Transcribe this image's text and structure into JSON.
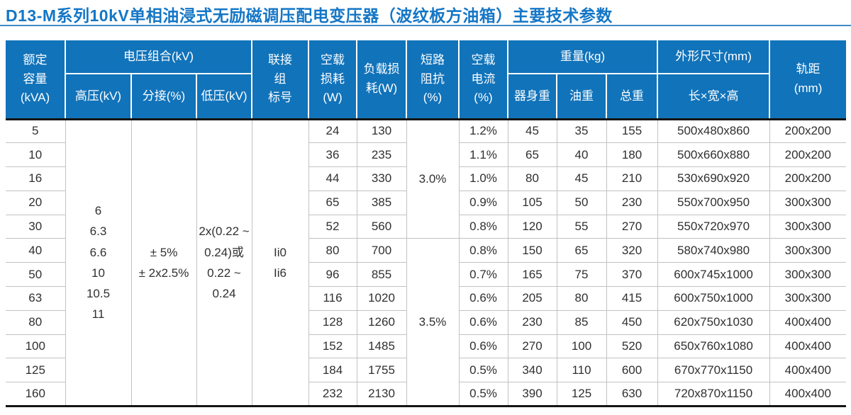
{
  "page": {
    "title": "D13-M系列10kV单相油浸式无励磁调压配电变压器（波纹板方油箱）主要技术参数"
  },
  "colors": {
    "title_text": "#1476C6",
    "title_rule": "#3E8BC8",
    "header_bg": "#1173BA",
    "header_text": "#FFFFFF",
    "heavy_line": "#141414",
    "grid_line": "#C2C2C2",
    "cell_text": "#303030"
  },
  "table": {
    "header": {
      "rated_capacity": "额定\n容量\n(kVA)",
      "voltage_combination": "电压组合(kV)",
      "hv": "高压(kV)",
      "tap": "分接(%)",
      "lv": "低压(kV)",
      "vector_group": "联接\n组\n标号",
      "no_load_loss": "空载\n损耗\n(W)",
      "load_loss": "负载损\n耗(W)",
      "impedance": "短路\n阻抗\n(%)",
      "no_load_current": "空载\n电流\n(%)",
      "weight": "重量(kg)",
      "body_weight": "器身重",
      "oil_weight": "油重",
      "total_weight": "总重",
      "dimensions": "外形尺寸(mm)",
      "lwh": "长×宽×高",
      "gauge": "轨距\n(mm)"
    },
    "merged": {
      "hv_values": "6\n6.3\n6.6\n10\n10.5\n11",
      "tap_values": "± 5%\n± 2x2.5%",
      "lv_values": "2x(0.22 ~\n0.24)或\n0.22 ~\n0.24",
      "vector_group_values": "Ii0\nIi6",
      "impedance_groups": [
        {
          "value": "3.0%",
          "row_span": 5
        },
        {
          "value": "3.5%",
          "row_span": 7
        }
      ]
    },
    "rows": [
      {
        "kva": "5",
        "no_load_loss": "24",
        "load_loss": "130",
        "no_load_current": "1.2%",
        "body_weight": "45",
        "oil_weight": "35",
        "total_weight": "155",
        "dimensions": "500x480x860",
        "gauge": "200x200"
      },
      {
        "kva": "10",
        "no_load_loss": "36",
        "load_loss": "235",
        "no_load_current": "1.1%",
        "body_weight": "65",
        "oil_weight": "40",
        "total_weight": "180",
        "dimensions": "500x660x880",
        "gauge": "200x200"
      },
      {
        "kva": "16",
        "no_load_loss": "44",
        "load_loss": "330",
        "no_load_current": "1.0%",
        "body_weight": "80",
        "oil_weight": "45",
        "total_weight": "210",
        "dimensions": "530x690x920",
        "gauge": "200x200"
      },
      {
        "kva": "20",
        "no_load_loss": "65",
        "load_loss": "385",
        "no_load_current": "0.9%",
        "body_weight": "105",
        "oil_weight": "50",
        "total_weight": "230",
        "dimensions": "550x700x950",
        "gauge": "300x300"
      },
      {
        "kva": "30",
        "no_load_loss": "52",
        "load_loss": "560",
        "no_load_current": "0.8%",
        "body_weight": "120",
        "oil_weight": "55",
        "total_weight": "270",
        "dimensions": "550x720x970",
        "gauge": "300x300"
      },
      {
        "kva": "40",
        "no_load_loss": "80",
        "load_loss": "700",
        "no_load_current": "0.8%",
        "body_weight": "150",
        "oil_weight": "65",
        "total_weight": "320",
        "dimensions": "580x740x980",
        "gauge": "300x300"
      },
      {
        "kva": "50",
        "no_load_loss": "96",
        "load_loss": "855",
        "no_load_current": "0.7%",
        "body_weight": "165",
        "oil_weight": "75",
        "total_weight": "370",
        "dimensions": "600x745x1000",
        "gauge": "300x300"
      },
      {
        "kva": "63",
        "no_load_loss": "116",
        "load_loss": "1020",
        "no_load_current": "0.6%",
        "body_weight": "205",
        "oil_weight": "80",
        "total_weight": "415",
        "dimensions": "600x750x1000",
        "gauge": "300x300"
      },
      {
        "kva": "80",
        "no_load_loss": "128",
        "load_loss": "1260",
        "no_load_current": "0.6%",
        "body_weight": "230",
        "oil_weight": "85",
        "total_weight": "450",
        "dimensions": "620x750x1030",
        "gauge": "400x400"
      },
      {
        "kva": "100",
        "no_load_loss": "152",
        "load_loss": "1485",
        "no_load_current": "0.6%",
        "body_weight": "270",
        "oil_weight": "100",
        "total_weight": "520",
        "dimensions": "650x760x1080",
        "gauge": "400x400"
      },
      {
        "kva": "125",
        "no_load_loss": "184",
        "load_loss": "1755",
        "no_load_current": "0.5%",
        "body_weight": "340",
        "oil_weight": "110",
        "total_weight": "600",
        "dimensions": "670x770x1150",
        "gauge": "400x400"
      },
      {
        "kva": "160",
        "no_load_loss": "232",
        "load_loss": "2130",
        "no_load_current": "0.5%",
        "body_weight": "390",
        "oil_weight": "125",
        "total_weight": "630",
        "dimensions": "720x870x1150",
        "gauge": "400x400"
      }
    ]
  }
}
